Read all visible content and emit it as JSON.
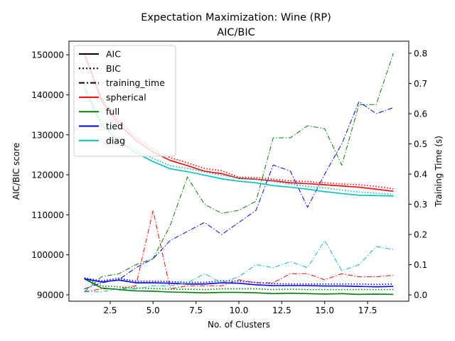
{
  "chart_data": {
    "type": "line",
    "title": "Expectation Maximization: Wine (RP)",
    "subtitle": "AIC/BIC",
    "xlabel": "No. of Clusters",
    "ylabel": "AIC/BIC score",
    "y2label": "Training Time (s)",
    "xlim": [
      0.1,
      19.9
    ],
    "ylim": [
      88400,
      153400
    ],
    "y2lim": [
      -0.021,
      0.84
    ],
    "xticks": [
      2.5,
      5.0,
      7.5,
      10.0,
      12.5,
      15.0,
      17.5
    ],
    "xtick_labels": [
      "2.5",
      "5.0",
      "7.5",
      "10.0",
      "12.5",
      "15.0",
      "17.5"
    ],
    "yticks": [
      90000,
      100000,
      110000,
      120000,
      130000,
      140000,
      150000
    ],
    "ytick_labels": [
      "90000",
      "100000",
      "110000",
      "120000",
      "130000",
      "140000",
      "150000"
    ],
    "y2ticks": [
      0.0,
      0.1,
      0.2,
      0.3,
      0.4,
      0.5,
      0.6,
      0.7,
      0.8
    ],
    "y2tick_labels": [
      "0.0",
      "0.1",
      "0.2",
      "0.3",
      "0.4",
      "0.5",
      "0.6",
      "0.7",
      "0.8"
    ],
    "grid": false,
    "legend_position": "top-left",
    "legend": [
      {
        "label": "AIC",
        "style": "solid",
        "color": "#000000"
      },
      {
        "label": "BIC",
        "style": "dotted",
        "color": "#000000"
      },
      {
        "label": "training_time",
        "style": "dashdot",
        "color": "#000000"
      },
      {
        "label": "spherical",
        "style": "solid",
        "color": "#ff0000"
      },
      {
        "label": "full",
        "style": "solid",
        "color": "#008000"
      },
      {
        "label": "tied",
        "style": "solid",
        "color": "#0000ff"
      },
      {
        "label": "diag",
        "style": "solid",
        "color": "#00bfbf"
      }
    ],
    "x": [
      1,
      2,
      3,
      4,
      5,
      6,
      7,
      8,
      9,
      10,
      11,
      12,
      13,
      14,
      15,
      16,
      17,
      18,
      19
    ],
    "series": [
      {
        "name": "spherical",
        "metric": "AIC",
        "axis": "left",
        "color": "#ff0000",
        "style": "solid",
        "values": [
          150200,
          138500,
          132700,
          128600,
          125700,
          123600,
          122300,
          120900,
          120300,
          119100,
          118900,
          118500,
          118000,
          117800,
          117500,
          117200,
          116900,
          116400,
          115900
        ]
      },
      {
        "name": "spherical",
        "metric": "BIC",
        "axis": "left",
        "color": "#ff0000",
        "style": "dotted",
        "values": [
          150600,
          139200,
          133500,
          129400,
          126400,
          124300,
          123000,
          121600,
          121000,
          119400,
          119300,
          118900,
          118500,
          118300,
          118000,
          117700,
          117500,
          117100,
          116500
        ]
      },
      {
        "name": "spherical",
        "metric": "training_time",
        "axis": "right",
        "color": "#ff0000",
        "style": "dashdot",
        "values": [
          0.01,
          0.02,
          0.02,
          0.03,
          0.28,
          0.02,
          0.03,
          0.03,
          0.03,
          0.05,
          0.04,
          0.04,
          0.07,
          0.07,
          0.05,
          0.07,
          0.06,
          0.06,
          0.065
        ]
      },
      {
        "name": "full",
        "metric": "AIC",
        "axis": "left",
        "color": "#008000",
        "style": "solid",
        "values": [
          94000,
          91700,
          91300,
          91000,
          90900,
          90700,
          90600,
          90500,
          90600,
          90600,
          90500,
          90300,
          90400,
          90300,
          90200,
          90300,
          90100,
          90200,
          90100
        ]
      },
      {
        "name": "full",
        "metric": "BIC",
        "axis": "left",
        "color": "#008000",
        "style": "dotted",
        "values": [
          94200,
          92200,
          92000,
          91700,
          91600,
          91400,
          91400,
          91300,
          91500,
          91500,
          91500,
          91300,
          91400,
          91300,
          91300,
          91300,
          91300,
          91300,
          91300
        ]
      },
      {
        "name": "full",
        "metric": "training_time",
        "axis": "right",
        "color": "#008000",
        "style": "dashdot",
        "values": [
          0.01,
          0.06,
          0.07,
          0.1,
          0.12,
          0.23,
          0.39,
          0.3,
          0.27,
          0.28,
          0.31,
          0.52,
          0.52,
          0.56,
          0.55,
          0.43,
          0.63,
          0.63,
          0.8
        ]
      },
      {
        "name": "tied",
        "metric": "AIC",
        "axis": "left",
        "color": "#0000ff",
        "style": "solid",
        "values": [
          94000,
          93200,
          93700,
          93000,
          93000,
          92900,
          92700,
          92700,
          93000,
          92900,
          92500,
          92300,
          92300,
          92300,
          92200,
          92200,
          92100,
          92000,
          92100
        ]
      },
      {
        "name": "tied",
        "metric": "BIC",
        "axis": "left",
        "color": "#0000ff",
        "style": "dotted",
        "values": [
          94200,
          93500,
          94100,
          93400,
          93400,
          93300,
          93100,
          93100,
          93500,
          93400,
          93100,
          92800,
          92700,
          92700,
          92700,
          92700,
          92700,
          92600,
          92700
        ]
      },
      {
        "name": "tied",
        "metric": "training_time",
        "axis": "right",
        "color": "#0000ff",
        "style": "dashdot",
        "values": [
          0.02,
          0.04,
          0.05,
          0.09,
          0.12,
          0.18,
          0.21,
          0.24,
          0.2,
          0.24,
          0.28,
          0.43,
          0.41,
          0.29,
          0.4,
          0.5,
          0.64,
          0.6,
          0.62
        ]
      },
      {
        "name": "diag",
        "metric": "AIC",
        "axis": "left",
        "color": "#00bfbf",
        "style": "solid",
        "values": [
          141500,
          132500,
          128500,
          125500,
          123300,
          121500,
          120800,
          119900,
          119000,
          118400,
          118000,
          117300,
          116900,
          116400,
          115800,
          115300,
          114900,
          114800,
          114700
        ]
      },
      {
        "name": "diag",
        "metric": "BIC",
        "axis": "left",
        "color": "#00bfbf",
        "style": "dotted",
        "values": [
          142300,
          133500,
          129200,
          126200,
          124100,
          122300,
          121600,
          120700,
          119900,
          119200,
          118900,
          118300,
          117700,
          117100,
          116700,
          116200,
          115700,
          115400,
          115100
        ]
      },
      {
        "name": "diag",
        "metric": "training_time",
        "axis": "right",
        "color": "#00bfbf",
        "style": "dashdot",
        "values": [
          0.01,
          0.01,
          0.02,
          0.02,
          0.03,
          0.03,
          0.04,
          0.07,
          0.04,
          0.06,
          0.1,
          0.09,
          0.11,
          0.09,
          0.18,
          0.08,
          0.1,
          0.16,
          0.15
        ]
      }
    ]
  }
}
